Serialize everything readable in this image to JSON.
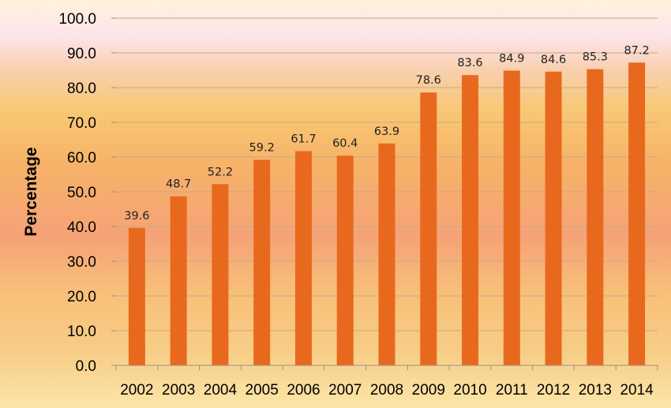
{
  "chart_data": {
    "type": "bar",
    "categories": [
      "2002",
      "2003",
      "2004",
      "2005",
      "2006",
      "2007",
      "2008",
      "2009",
      "2010",
      "2011",
      "2012",
      "2013",
      "2014"
    ],
    "values": [
      39.6,
      48.7,
      52.2,
      59.2,
      61.7,
      60.4,
      63.9,
      78.6,
      83.6,
      84.9,
      84.6,
      85.3,
      87.2
    ],
    "data_labels": [
      "39.6",
      "48.7",
      "52.2",
      "59.2",
      "61.7",
      "60.4",
      "63.9",
      "78.6",
      "83.6",
      "84.9",
      "84.6",
      "85.3",
      "87.2"
    ],
    "y_ticks": [
      "0.0",
      "10.0",
      "20.0",
      "30.0",
      "40.0",
      "50.0",
      "60.0",
      "70.0",
      "80.0",
      "90.0",
      "100.0"
    ],
    "title": "",
    "xlabel": "",
    "ylabel": "Percentage",
    "ylim": [
      0,
      100
    ],
    "grid": true,
    "colors": {
      "bar": "#e8691e",
      "grid": "#c4a98a"
    }
  }
}
